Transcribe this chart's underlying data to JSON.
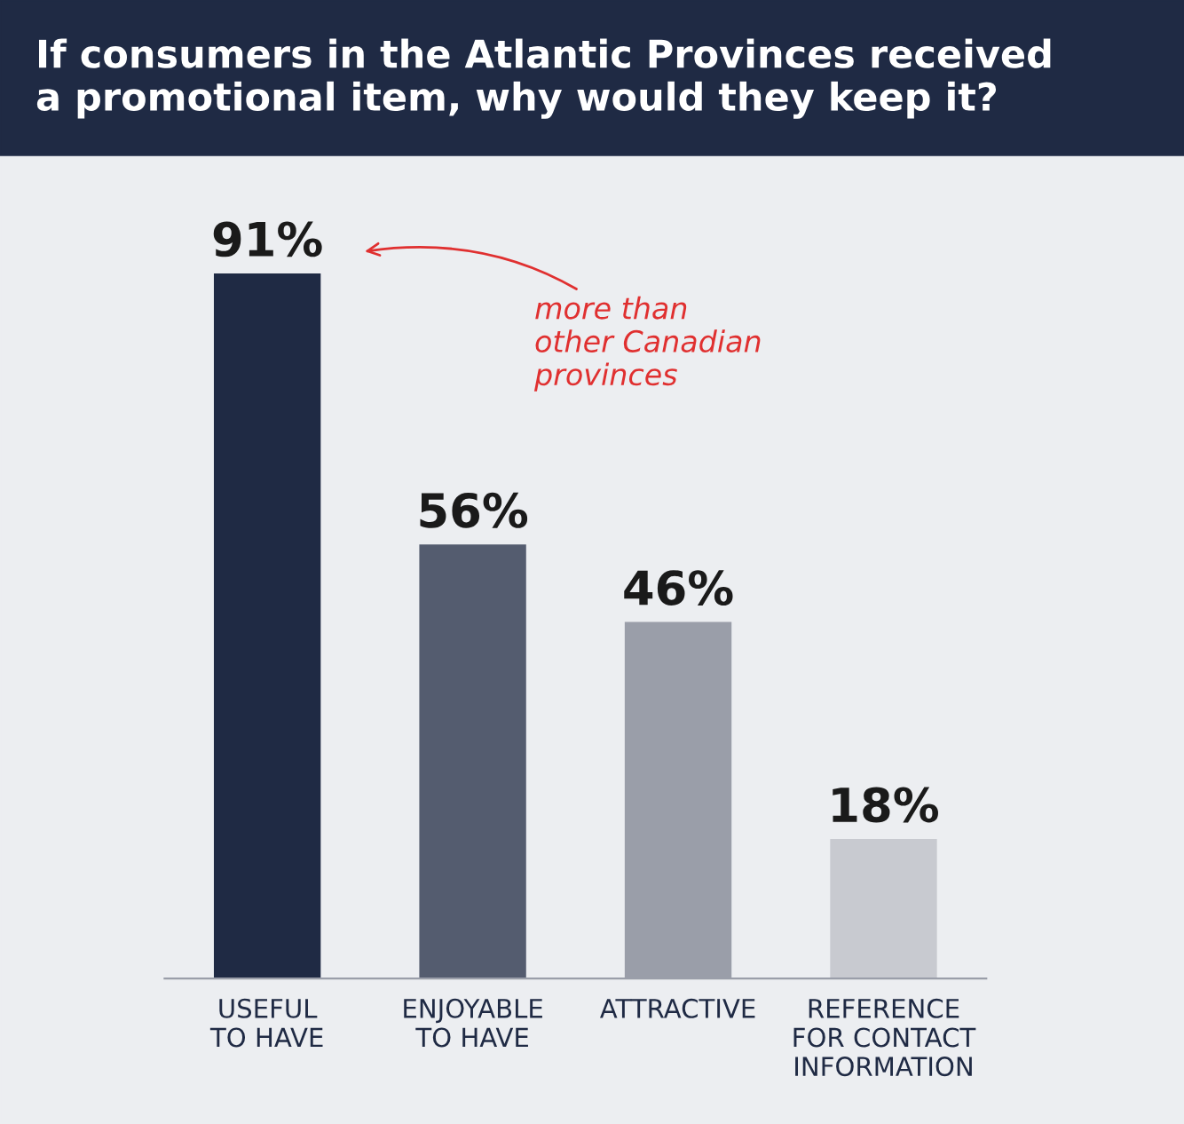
{
  "chart_data": {
    "type": "bar",
    "title": "If consumers in the Atlantic Provinces received\na promotional item, why would they keep it?",
    "categories": [
      "USEFUL\nTO HAVE",
      "ENJOYABLE\nTO HAVE",
      "ATTRACTIVE",
      "REFERENCE\nFOR CONTACT\nINFORMATION"
    ],
    "values": [
      91,
      56,
      46,
      18
    ],
    "colors": [
      "#1f2a44",
      "#545c6f",
      "#9a9ea9",
      "#c8cad0"
    ],
    "data_labels": true,
    "value_labels": [
      "91%",
      "56%",
      "46%",
      "18%"
    ],
    "annotations": [
      "more than\nother Canadian\nprovinces"
    ],
    "grid": false,
    "legend": false
  }
}
